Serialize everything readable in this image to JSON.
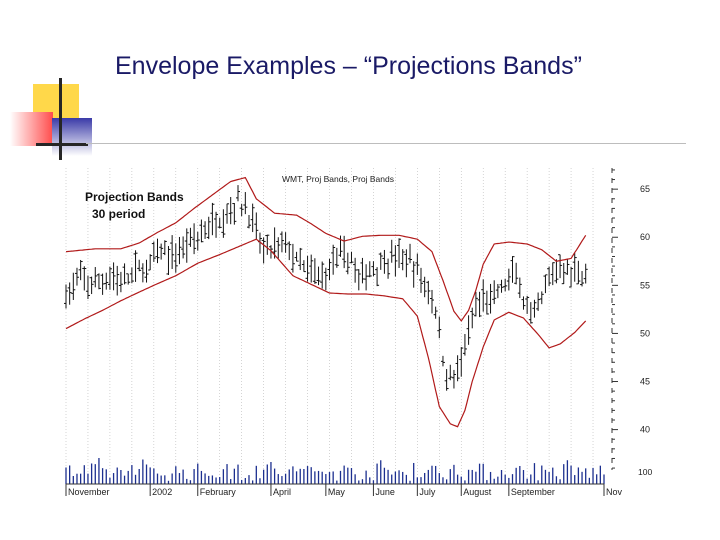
{
  "slide": {
    "title": "Envelope Examples – “Projections Bands”"
  },
  "chart_data": {
    "type": "ohlc",
    "title": "WMT, Proj Bands, Proj Bands",
    "annotation": [
      "Projection Bands",
      "30 period"
    ],
    "y_ticks": [
      40,
      45,
      50,
      55,
      60,
      65
    ],
    "ylim": [
      35.8,
      67.2
    ],
    "volume_label": "100",
    "month_labels": [
      "November",
      "2002",
      "February",
      "April",
      "May",
      "June",
      "July",
      "August",
      "September",
      "Nov"
    ],
    "x_range": [
      0,
      147
    ],
    "month_starts": [
      0,
      23,
      36,
      56,
      71,
      84,
      96,
      108,
      121,
      147
    ],
    "price_anchors": [
      [
        0,
        54
      ],
      [
        4,
        55.6
      ],
      [
        8,
        55
      ],
      [
        12,
        56
      ],
      [
        16,
        55.3
      ],
      [
        19,
        56.5
      ],
      [
        22,
        56.7
      ],
      [
        24,
        57.7
      ],
      [
        26,
        58.5
      ],
      [
        29,
        58
      ],
      [
        31,
        58.5
      ],
      [
        34,
        59.8
      ],
      [
        36,
        60
      ],
      [
        40,
        61.5
      ],
      [
        44,
        62.5
      ],
      [
        47,
        63.8
      ],
      [
        50,
        62.5
      ],
      [
        52,
        60.5
      ],
      [
        54,
        58.5
      ],
      [
        57,
        59
      ],
      [
        60,
        59.3
      ],
      [
        64,
        57
      ],
      [
        67,
        56.2
      ],
      [
        71,
        56
      ],
      [
        73,
        57.7
      ],
      [
        76,
        58
      ],
      [
        78,
        57.8
      ],
      [
        80,
        55.5
      ],
      [
        82,
        56.3
      ],
      [
        84,
        56.8
      ],
      [
        88,
        57.7
      ],
      [
        91,
        57.9
      ],
      [
        94,
        57.4
      ],
      [
        97,
        55.8
      ],
      [
        99,
        54.5
      ],
      [
        101,
        52.5
      ],
      [
        103,
        47.5
      ],
      [
        104,
        45.5
      ],
      [
        106,
        45.6
      ],
      [
        108,
        47
      ],
      [
        110,
        49.8
      ],
      [
        112,
        52.5
      ],
      [
        114,
        53.6
      ],
      [
        116,
        53.4
      ],
      [
        118,
        54.2
      ],
      [
        120,
        55.1
      ],
      [
        123,
        56.2
      ],
      [
        125,
        53.4
      ],
      [
        127,
        51.2
      ],
      [
        129,
        52.5
      ],
      [
        131,
        54.6
      ],
      [
        133,
        56.2
      ],
      [
        135,
        57
      ],
      [
        137,
        56.4
      ],
      [
        141,
        56.5
      ],
      [
        142,
        56.1
      ]
    ],
    "upper_band": [
      [
        0,
        58.5
      ],
      [
        8,
        58.8
      ],
      [
        15,
        58.8
      ],
      [
        20,
        59.4
      ],
      [
        25,
        60.5
      ],
      [
        30,
        61.5
      ],
      [
        35,
        63
      ],
      [
        40,
        64.4
      ],
      [
        45,
        65.8
      ],
      [
        49,
        66.2
      ],
      [
        52,
        64
      ],
      [
        57,
        62.5
      ],
      [
        63,
        62.3
      ],
      [
        67,
        61.4
      ],
      [
        71,
        60.4
      ],
      [
        76,
        59.6
      ],
      [
        81,
        60.1
      ],
      [
        86,
        60.2
      ],
      [
        91,
        60.2
      ],
      [
        96,
        59.8
      ],
      [
        100,
        58.5
      ],
      [
        103,
        55.5
      ],
      [
        106,
        52.3
      ],
      [
        108,
        51.3
      ],
      [
        110,
        52.4
      ],
      [
        112,
        54.5
      ],
      [
        114,
        57.2
      ],
      [
        117,
        59.3
      ],
      [
        121,
        59.5
      ],
      [
        126,
        59.3
      ],
      [
        130,
        58.7
      ],
      [
        134,
        57.5
      ],
      [
        138,
        57.8
      ],
      [
        142,
        60.2
      ]
    ],
    "lower_band": [
      [
        0,
        50.5
      ],
      [
        5,
        51.5
      ],
      [
        10,
        52.4
      ],
      [
        15,
        53.4
      ],
      [
        20,
        54.3
      ],
      [
        24,
        55
      ],
      [
        30,
        56
      ],
      [
        36,
        57.3
      ],
      [
        42,
        58.2
      ],
      [
        47,
        59
      ],
      [
        52,
        59.8
      ],
      [
        56,
        58.6
      ],
      [
        62,
        56
      ],
      [
        67,
        55.1
      ],
      [
        72,
        54.2
      ],
      [
        77,
        54.1
      ],
      [
        82,
        54.1
      ],
      [
        87,
        53.9
      ],
      [
        92,
        53.6
      ],
      [
        96,
        51.8
      ],
      [
        99,
        47.5
      ],
      [
        102,
        42.4
      ],
      [
        105,
        40.6
      ],
      [
        107,
        40.3
      ],
      [
        109,
        42
      ],
      [
        111,
        45
      ],
      [
        114,
        48.6
      ],
      [
        117,
        51.4
      ],
      [
        121,
        52.2
      ],
      [
        125,
        51.6
      ],
      [
        129,
        49.9
      ],
      [
        132,
        48.5
      ],
      [
        135,
        48.9
      ],
      [
        139,
        50.1
      ],
      [
        142,
        51.3
      ]
    ]
  }
}
